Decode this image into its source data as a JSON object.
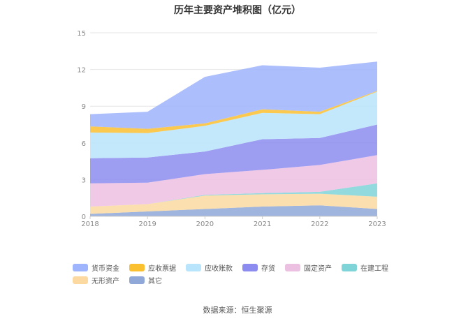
{
  "title": "历年主要资产堆积图（亿元）",
  "source": "数据来源：恒生聚源",
  "chart_data": {
    "type": "area",
    "stacked": true,
    "categories": [
      "2018",
      "2019",
      "2020",
      "2021",
      "2022",
      "2023"
    ],
    "ylim": [
      0,
      15
    ],
    "yticks": [
      "0",
      "3",
      "6",
      "9",
      "12",
      "15"
    ],
    "grid": true,
    "legend_position": "bottom",
    "series": [
      {
        "name": "其它",
        "color": "#8fa8d8",
        "values": [
          0.2,
          0.4,
          0.6,
          0.8,
          0.9,
          0.6
        ]
      },
      {
        "name": "无形资产",
        "color": "#fcd9a0",
        "values": [
          0.6,
          0.6,
          1.1,
          1.0,
          0.95,
          1.0
        ]
      },
      {
        "name": "在建工程",
        "color": "#7fd4d8",
        "values": [
          0.0,
          0.0,
          0.05,
          0.1,
          0.15,
          1.1
        ]
      },
      {
        "name": "固定资产",
        "color": "#ecc0e0",
        "values": [
          1.9,
          1.75,
          1.7,
          1.9,
          2.2,
          2.3
        ]
      },
      {
        "name": "存货",
        "color": "#8c8cf0",
        "values": [
          2.05,
          2.05,
          1.85,
          2.5,
          2.2,
          2.5
        ]
      },
      {
        "name": "应收账款",
        "color": "#b8e4fc",
        "values": [
          2.1,
          2.0,
          2.1,
          2.15,
          1.95,
          2.7
        ]
      },
      {
        "name": "应收票据",
        "color": "#fac030",
        "values": [
          0.5,
          0.35,
          0.2,
          0.3,
          0.2,
          0.05
        ]
      },
      {
        "name": "货币资金",
        "color": "#9eb4fc",
        "values": [
          1.0,
          1.4,
          3.8,
          3.6,
          3.6,
          2.4
        ]
      }
    ],
    "legend_order": [
      "货币资金",
      "应收票据",
      "应收账款",
      "存货",
      "固定资产",
      "在建工程",
      "无形资产",
      "其它"
    ]
  }
}
